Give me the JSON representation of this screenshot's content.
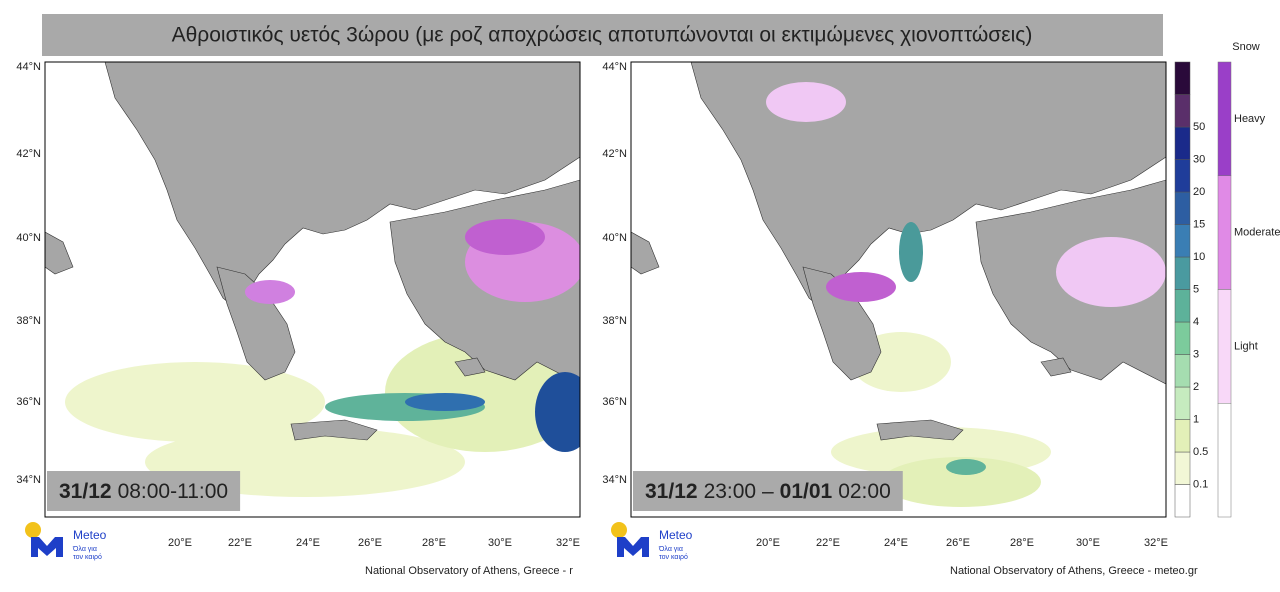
{
  "title": "Αθροιστικός υετός 3ώρου (με ροζ αποχρώσεις αποτυπώνονται οι εκτιμώμενες χιονοπτώσεις)",
  "axes": {
    "lat_labels": [
      "44°N",
      "42°N",
      "40°N",
      "38°N",
      "36°N",
      "34°N"
    ],
    "lon_labels": [
      "20°E",
      "22°E",
      "24°E",
      "26°E",
      "28°E",
      "30°E",
      "32°E"
    ]
  },
  "panels": [
    {
      "time_parts": [
        "31/12",
        "08:00-11:00"
      ],
      "credit": "National Observatory of Athens, Greece - r"
    },
    {
      "time_parts": [
        "31/12",
        "23:00 –",
        "01/01",
        "02:00"
      ],
      "credit": "National Observatory of Athens, Greece - meteo.gr"
    }
  ],
  "logo": {
    "name": "Meteo",
    "tagline_1": "Όλα για",
    "tagline_2": "τον καιρό"
  },
  "precip_scale": {
    "labels": [
      "0.1",
      "0.5",
      "1",
      "2",
      "3",
      "4",
      "5",
      "10",
      "15",
      "20",
      "30",
      "50"
    ]
  },
  "snow_scale": {
    "title": "Snow",
    "labels": [
      "Heavy",
      "Moderate",
      "Light"
    ]
  }
}
